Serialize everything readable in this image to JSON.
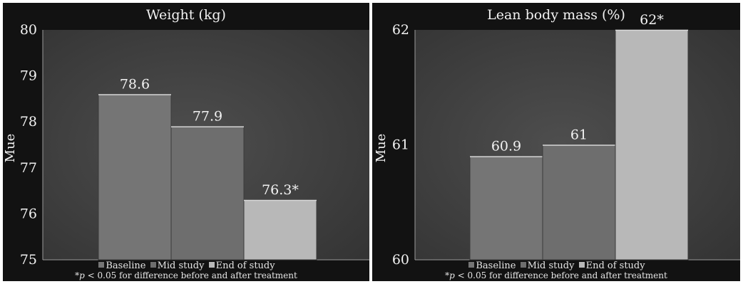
{
  "chart_data": [
    {
      "type": "bar",
      "title": "Weight (kg)",
      "ylabel": "Mue",
      "xlabel": "",
      "ylim": [
        75,
        80
      ],
      "yticks": [
        "75",
        "76",
        "77",
        "78",
        "79",
        "80"
      ],
      "categories": [
        "Baseline",
        "Mid study",
        "End of study"
      ],
      "values": [
        78.6,
        77.9,
        76.3
      ],
      "data_labels": [
        "78.6",
        "77.9",
        "76.3*"
      ],
      "legend": [
        "Baseline",
        "Mid study",
        "End of study"
      ],
      "legend_position": "bottom",
      "grid": false,
      "colors": [
        "#757575",
        "#6e6e6e",
        "#b8b8b8"
      ],
      "footnote": {
        "prefix": "*",
        "p": "p",
        "text": " < 0.05 for difference before and after treatment"
      }
    },
    {
      "type": "bar",
      "title": "Lean body mass (%)",
      "ylabel": "Mue",
      "xlabel": "",
      "ylim": [
        60,
        62
      ],
      "yticks": [
        "60",
        "61",
        "62"
      ],
      "categories": [
        "Baseline",
        "Mid study",
        "End of study"
      ],
      "values": [
        60.9,
        61,
        62
      ],
      "data_labels": [
        "60.9",
        "61",
        "62*"
      ],
      "legend": [
        "Baseline",
        "Mid study",
        "End of study"
      ],
      "legend_position": "bottom",
      "grid": false,
      "colors": [
        "#757575",
        "#6e6e6e",
        "#b8b8b8"
      ],
      "footnote": {
        "prefix": "*",
        "p": "p",
        "text": " < 0.05 for difference before and after treatment"
      }
    }
  ]
}
